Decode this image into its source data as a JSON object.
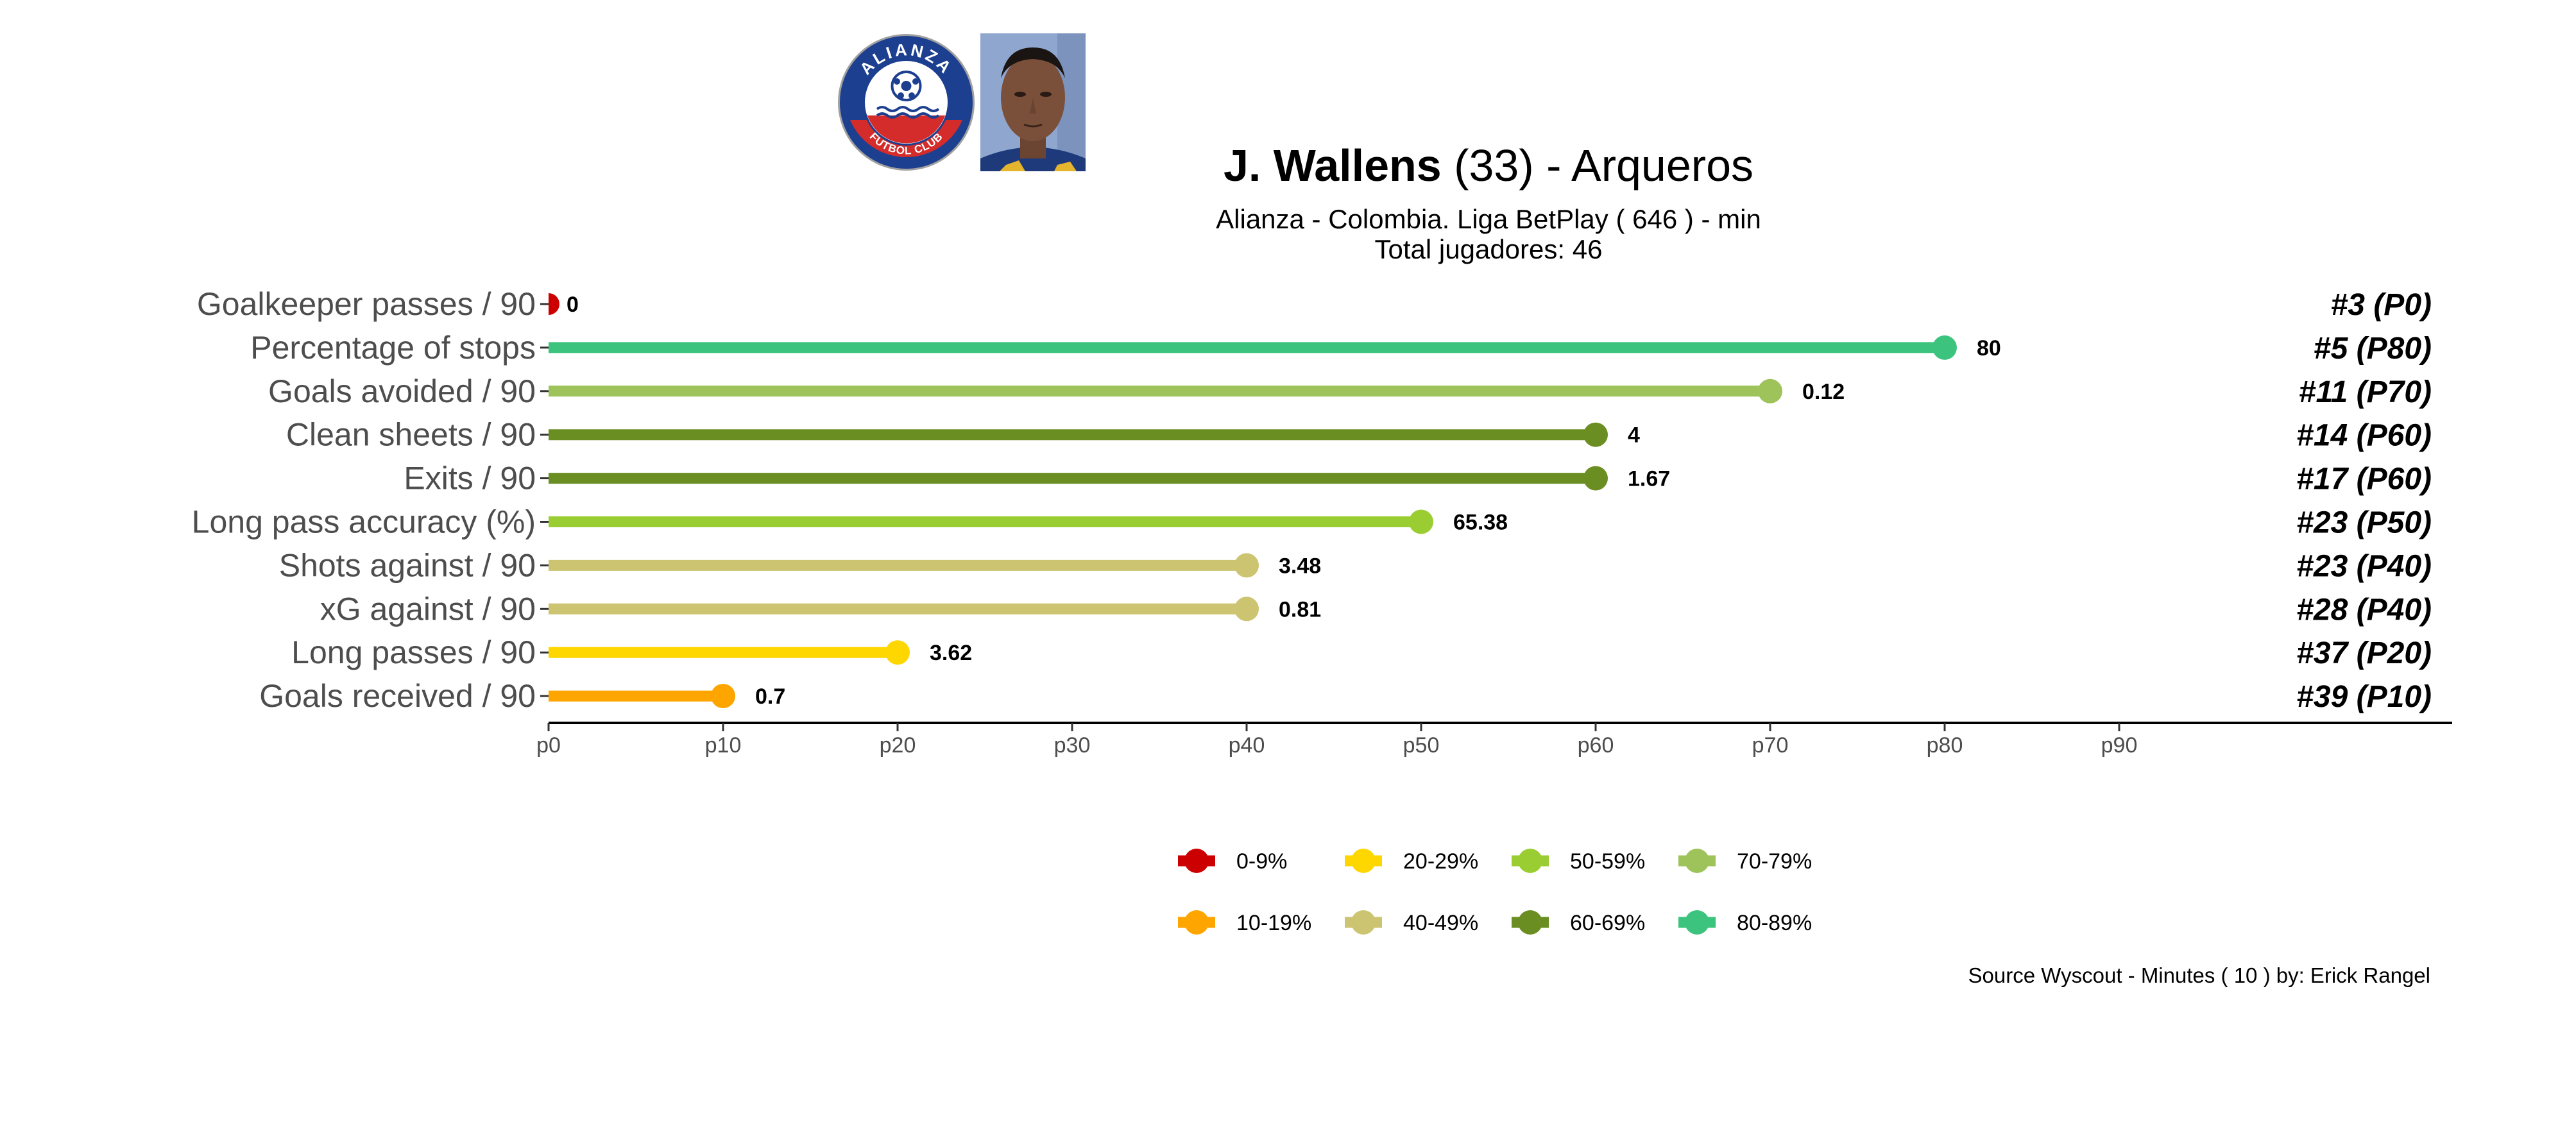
{
  "header": {
    "player_name": "J. Wallens",
    "age": "(33)",
    "position": "Arqueros",
    "subtitle": "Alianza  -  Colombia. Liga BetPlay  ( 646 ) - min",
    "total_players": "Total jugadores:  46"
  },
  "crest": {
    "top_text": "ALIANZA",
    "bottom_text": "FUTBOL CLUB"
  },
  "source_text": "Source Wyscout - Minutes ( 10 ) by: Erick Rangel",
  "chart_data": {
    "type": "bar",
    "subtype": "lollipop",
    "title": "",
    "xlabel": "",
    "ylabel": "",
    "xlim": [
      0,
      90
    ],
    "x_tick_labels": [
      "p0",
      "p10",
      "p20",
      "p30",
      "p40",
      "p50",
      "p60",
      "p70",
      "p80",
      "p90"
    ],
    "x_ticks": [
      0,
      10,
      20,
      30,
      40,
      50,
      60,
      70,
      80,
      90
    ],
    "grid": false,
    "legend_position": "bottom-center",
    "rows": [
      {
        "metric": "Goalkeeper passes / 90",
        "percentile": 0,
        "value_label": "0",
        "rank_label": "#3 (P0)",
        "color": "#CC0000"
      },
      {
        "metric": "Percentage of stops",
        "percentile": 80,
        "value_label": "80",
        "rank_label": "#5 (P80)",
        "color": "#3CC47E"
      },
      {
        "metric": "Goals avoided / 90",
        "percentile": 70,
        "value_label": "0.12",
        "rank_label": "#11 (P70)",
        "color": "#9DC35A"
      },
      {
        "metric": "Clean sheets / 90",
        "percentile": 60,
        "value_label": "4",
        "rank_label": "#14 (P60)",
        "color": "#6B8E23"
      },
      {
        "metric": "Exits / 90",
        "percentile": 60,
        "value_label": "1.67",
        "rank_label": "#17 (P60)",
        "color": "#6B8E23"
      },
      {
        "metric": "Long pass accuracy (%)",
        "percentile": 50,
        "value_label": "65.38",
        "rank_label": "#23 (P50)",
        "color": "#9ACD32"
      },
      {
        "metric": "Shots against / 90",
        "percentile": 40,
        "value_label": "3.48",
        "rank_label": "#23 (P40)",
        "color": "#CCC470"
      },
      {
        "metric": "xG against / 90",
        "percentile": 40,
        "value_label": "0.81",
        "rank_label": "#28 (P40)",
        "color": "#CCC470"
      },
      {
        "metric": "Long passes / 90",
        "percentile": 20,
        "value_label": "3.62",
        "rank_label": "#37 (P20)",
        "color": "#FFD700"
      },
      {
        "metric": "Goals received / 90",
        "percentile": 10,
        "value_label": "0.7",
        "rank_label": "#39 (P10)",
        "color": "#FFA500"
      }
    ],
    "legend": [
      {
        "label": "0-9%",
        "color": "#CC0000"
      },
      {
        "label": "20-29%",
        "color": "#FFD700"
      },
      {
        "label": "50-59%",
        "color": "#9ACD32"
      },
      {
        "label": "70-79%",
        "color": "#9DC35A"
      },
      {
        "label": "10-19%",
        "color": "#FFA500"
      },
      {
        "label": "40-49%",
        "color": "#CCC470"
      },
      {
        "label": "60-69%",
        "color": "#6B8E23"
      },
      {
        "label": "80-89%",
        "color": "#3CC47E"
      }
    ]
  }
}
